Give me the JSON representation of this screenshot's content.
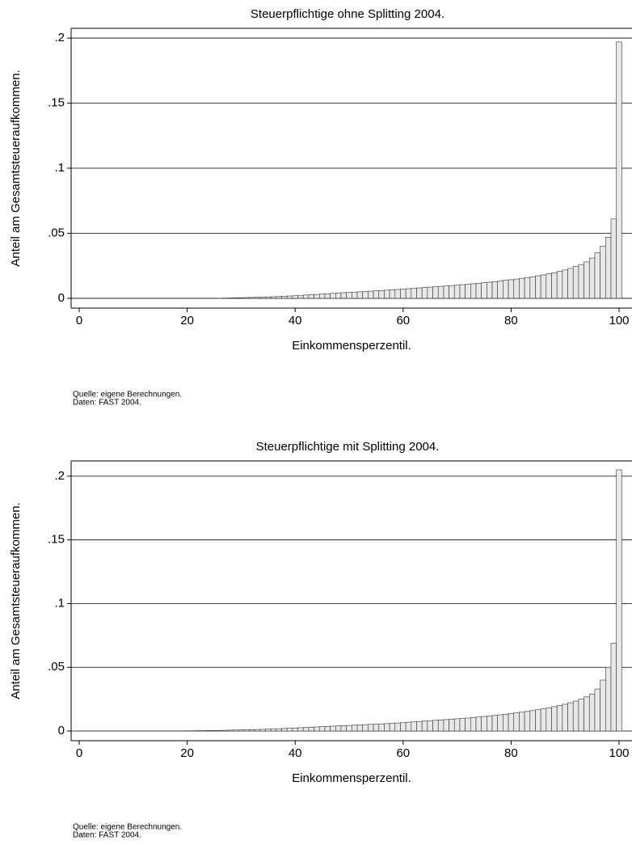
{
  "chart_data": [
    {
      "type": "bar",
      "title": "Steuerpflichtige ohne Splitting 2004.",
      "xlabel": "Einkommensperzentil.",
      "ylabel": "Anteil am Gesamtsteueraufkommen.",
      "notes": [
        "Quelle: eigene Berechnungen.",
        "Daten: FAST 2004."
      ],
      "x": [
        1,
        2,
        3,
        4,
        5,
        6,
        7,
        8,
        9,
        10,
        11,
        12,
        13,
        14,
        15,
        16,
        17,
        18,
        19,
        20,
        21,
        22,
        23,
        24,
        25,
        26,
        27,
        28,
        29,
        30,
        31,
        32,
        33,
        34,
        35,
        36,
        37,
        38,
        39,
        40,
        41,
        42,
        43,
        44,
        45,
        46,
        47,
        48,
        49,
        50,
        51,
        52,
        53,
        54,
        55,
        56,
        57,
        58,
        59,
        60,
        61,
        62,
        63,
        64,
        65,
        66,
        67,
        68,
        69,
        70,
        71,
        72,
        73,
        74,
        75,
        76,
        77,
        78,
        79,
        80,
        81,
        82,
        83,
        84,
        85,
        86,
        87,
        88,
        89,
        90,
        91,
        92,
        93,
        94,
        95,
        96,
        97,
        98,
        99,
        100
      ],
      "values": [
        0,
        0,
        0,
        0,
        0,
        0,
        0,
        0,
        0,
        0,
        0,
        0,
        0,
        0,
        0,
        0,
        0,
        0,
        0,
        0,
        0,
        0,
        0,
        0,
        0,
        0.0001,
        0.0002,
        0.0003,
        0.0004,
        0.0005,
        0.0006,
        0.0007,
        0.0008,
        0.0009,
        0.0011,
        0.0012,
        0.0014,
        0.0016,
        0.0018,
        0.002,
        0.0023,
        0.0025,
        0.0028,
        0.003,
        0.0033,
        0.0035,
        0.0038,
        0.004,
        0.0043,
        0.0045,
        0.0048,
        0.005,
        0.0053,
        0.0055,
        0.0058,
        0.006,
        0.0063,
        0.0066,
        0.0068,
        0.0071,
        0.0074,
        0.0077,
        0.008,
        0.0083,
        0.0086,
        0.0089,
        0.0092,
        0.0095,
        0.0098,
        0.0101,
        0.0105,
        0.0108,
        0.0112,
        0.0116,
        0.012,
        0.0124,
        0.0128,
        0.0133,
        0.0138,
        0.0143,
        0.0148,
        0.0154,
        0.016,
        0.0166,
        0.0173,
        0.018,
        0.0188,
        0.0197,
        0.0207,
        0.0218,
        0.023,
        0.0245,
        0.026,
        0.028,
        0.031,
        0.035,
        0.04,
        0.047,
        0.061,
        0.197
      ],
      "color": "#e8e8e8",
      "xlim": [
        0,
        100
      ],
      "xticks": [
        0,
        20,
        40,
        60,
        80,
        100
      ],
      "ylim": [
        -0.0075,
        0.2075
      ],
      "yticks": [
        0,
        {
          "value": 0.05,
          "label": ".05"
        },
        {
          "value": 0.1,
          "label": ".1"
        },
        {
          "value": 0.15,
          "label": ".15"
        },
        {
          "value": 0.2,
          "label": ".2"
        }
      ],
      "grid": true
    },
    {
      "type": "bar",
      "title": "Steuerpflichtige mit Splitting 2004.",
      "xlabel": "Einkommensperzentil.",
      "ylabel": "Anteil am Gesamtsteueraufkommen.",
      "notes": [
        "Quelle: eigene Berechnungen.",
        "Daten: FAST 2004."
      ],
      "x": [
        1,
        2,
        3,
        4,
        5,
        6,
        7,
        8,
        9,
        10,
        11,
        12,
        13,
        14,
        15,
        16,
        17,
        18,
        19,
        20,
        21,
        22,
        23,
        24,
        25,
        26,
        27,
        28,
        29,
        30,
        31,
        32,
        33,
        34,
        35,
        36,
        37,
        38,
        39,
        40,
        41,
        42,
        43,
        44,
        45,
        46,
        47,
        48,
        49,
        50,
        51,
        52,
        53,
        54,
        55,
        56,
        57,
        58,
        59,
        60,
        61,
        62,
        63,
        64,
        65,
        66,
        67,
        68,
        69,
        70,
        71,
        72,
        73,
        74,
        75,
        76,
        77,
        78,
        79,
        80,
        81,
        82,
        83,
        84,
        85,
        86,
        87,
        88,
        89,
        90,
        91,
        92,
        93,
        94,
        95,
        96,
        97,
        98,
        99,
        100
      ],
      "values": [
        0,
        0,
        0,
        0,
        0,
        0,
        0,
        0,
        0,
        0,
        0,
        0,
        0,
        0,
        0,
        0,
        0,
        0.0001,
        0.0001,
        0.0002,
        0.0002,
        0.0003,
        0.0003,
        0.0004,
        0.0004,
        0.0005,
        0.0006,
        0.0007,
        0.0008,
        0.0009,
        0.001,
        0.0011,
        0.0012,
        0.0013,
        0.0015,
        0.0016,
        0.0018,
        0.002,
        0.0022,
        0.0024,
        0.0026,
        0.0028,
        0.003,
        0.0032,
        0.0034,
        0.0036,
        0.0038,
        0.004,
        0.0042,
        0.0044,
        0.0046,
        0.0048,
        0.005,
        0.0052,
        0.0054,
        0.0056,
        0.0058,
        0.006,
        0.0063,
        0.0066,
        0.0069,
        0.0072,
        0.0075,
        0.0078,
        0.0081,
        0.0084,
        0.0087,
        0.009,
        0.0093,
        0.0096,
        0.0099,
        0.0102,
        0.0106,
        0.011,
        0.0114,
        0.0118,
        0.0122,
        0.0127,
        0.0132,
        0.0137,
        0.0142,
        0.0148,
        0.0154,
        0.016,
        0.0167,
        0.0174,
        0.0182,
        0.0191,
        0.02,
        0.021,
        0.0222,
        0.0235,
        0.025,
        0.0268,
        0.029,
        0.033,
        0.04,
        0.05,
        0.069,
        0.205
      ],
      "color": "#e8e8e8",
      "xlim": [
        0,
        100
      ],
      "xticks": [
        0,
        20,
        40,
        60,
        80,
        100
      ],
      "ylim": [
        -0.0076,
        0.212
      ],
      "yticks": [
        0,
        {
          "value": 0.05,
          "label": ".05"
        },
        {
          "value": 0.1,
          "label": ".1"
        },
        {
          "value": 0.15,
          "label": ".15"
        },
        {
          "value": 0.2,
          "label": ".2"
        }
      ],
      "grid": true
    }
  ]
}
